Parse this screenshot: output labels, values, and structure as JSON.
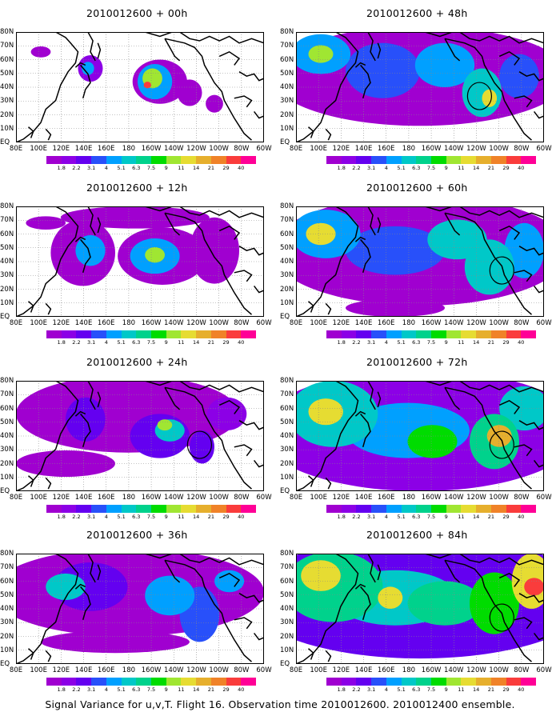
{
  "caption": "Signal Variance for u,v,T. Flight 16. Observation time 2010012600. 2010012400 ensemble.",
  "lat_labels": [
    "80N",
    "70N",
    "60N",
    "50N",
    "40N",
    "30N",
    "20N",
    "10N",
    "EQ"
  ],
  "lon_labels": [
    "80E",
    "100E",
    "120E",
    "140E",
    "160E",
    "180",
    "160W",
    "140W",
    "120W",
    "100W",
    "80W",
    "60W"
  ],
  "colorbar": {
    "labels": [
      "1.8",
      "2.2",
      "3.1",
      "4",
      "5.1",
      "6.3",
      "7.5",
      "9",
      "11",
      "14",
      "21",
      "29",
      "40"
    ],
    "colors": [
      "#a000d0",
      "#8c00e6",
      "#6400f0",
      "#2850fa",
      "#00a0ff",
      "#00c8c8",
      "#00d28c",
      "#00dc00",
      "#a0e632",
      "#e6dc32",
      "#e6af2d",
      "#f08228",
      "#fa3c3c",
      "#ff0096"
    ]
  },
  "panels": [
    {
      "title": "2010012600 + 00h",
      "level": 0
    },
    {
      "title": "2010012600 + 48h",
      "level": 4
    },
    {
      "title": "2010012600 + 12h",
      "level": 1
    },
    {
      "title": "2010012600 + 60h",
      "level": 5
    },
    {
      "title": "2010012600 + 24h",
      "level": 2
    },
    {
      "title": "2010012600 + 72h",
      "level": 6
    },
    {
      "title": "2010012600 + 36h",
      "level": 3
    },
    {
      "title": "2010012600 + 84h",
      "level": 7
    }
  ]
}
